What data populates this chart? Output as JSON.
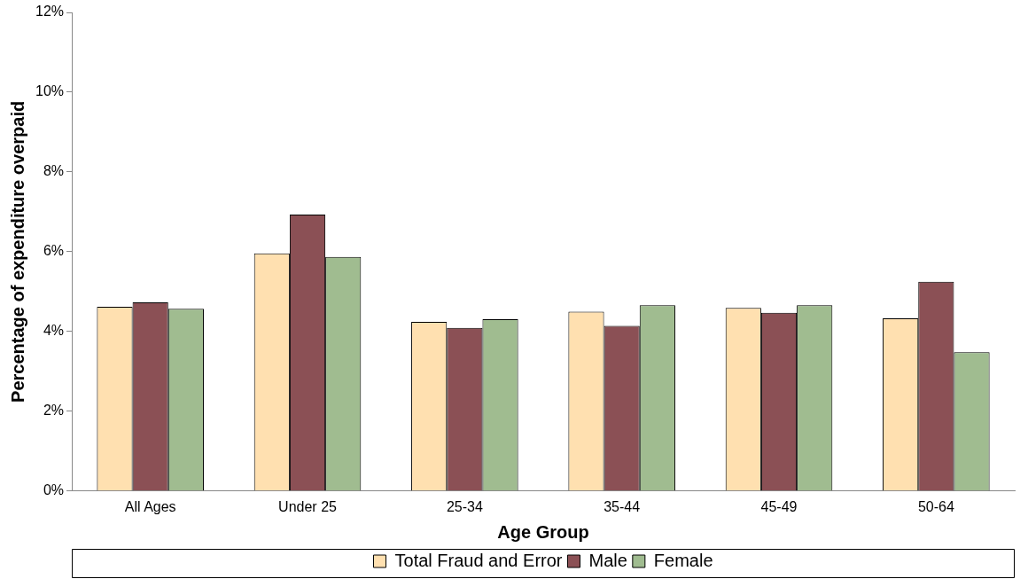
{
  "chart_data": {
    "type": "bar",
    "xlabel": "Age Group",
    "ylabel": "Percentage of expenditure overpaid",
    "categories": [
      "All Ages",
      "Under 25",
      "25-34",
      "35-44",
      "45-49",
      "50-64"
    ],
    "series": [
      {
        "name": "Total Fraud and Error",
        "color": "#ffe0b0",
        "values": [
          4.62,
          5.96,
          4.24,
          4.5,
          4.59,
          4.33
        ]
      },
      {
        "name": "Male",
        "color": "#8b5055",
        "values": [
          4.73,
          6.93,
          4.09,
          4.14,
          4.47,
          5.25
        ]
      },
      {
        "name": "Female",
        "color": "#a0bc90",
        "values": [
          4.57,
          5.87,
          4.31,
          4.66,
          4.66,
          3.48
        ]
      }
    ],
    "ylim": [
      0,
      12
    ],
    "yticks": [
      {
        "value": 0,
        "label": "0%"
      },
      {
        "value": 2,
        "label": "2%"
      },
      {
        "value": 4,
        "label": "4%"
      },
      {
        "value": 6,
        "label": "6%"
      },
      {
        "value": 8,
        "label": "8%"
      },
      {
        "value": 10,
        "label": "10%"
      },
      {
        "value": 12,
        "label": "12%"
      }
    ],
    "grid": false,
    "legend": "bottom"
  }
}
